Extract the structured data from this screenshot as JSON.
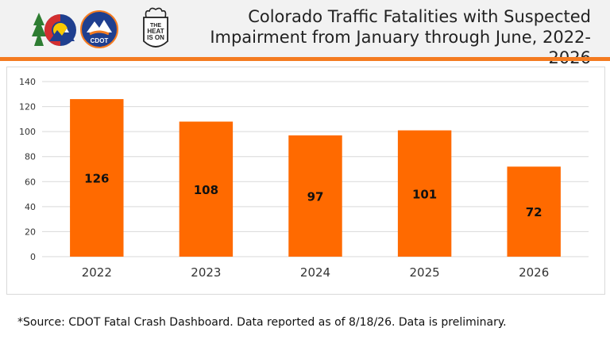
{
  "header": {
    "title_line1": "Colorado Traffic Fatalities with Suspected",
    "title_line2": "Impairment from January through June, 2022-2026",
    "logos": [
      {
        "name": "colorado-logo-icon"
      },
      {
        "name": "cdot-logo-icon",
        "text": "CDOT"
      },
      {
        "name": "heat-is-on-logo-icon",
        "text": "THE HEAT IS ON"
      }
    ]
  },
  "colors": {
    "bar": "#ff6a00",
    "accent": "#f47b20",
    "grid": "#d9d9d9"
  },
  "chart_data": {
    "type": "bar",
    "categories": [
      "2022",
      "2023",
      "2024",
      "2025",
      "2026"
    ],
    "values": [
      126,
      108,
      97,
      101,
      72
    ],
    "data_labels": [
      "126",
      "108",
      "97",
      "101",
      "72"
    ],
    "yticks": [
      "0",
      "20",
      "40",
      "60",
      "80",
      "100",
      "120",
      "140"
    ],
    "ylim": [
      0,
      140
    ],
    "grid": true,
    "legend": "none",
    "title": ""
  },
  "footer": {
    "source": "*Source: CDOT Fatal Crash Dashboard. Data reported as of 8/18/26. Data is preliminary."
  }
}
